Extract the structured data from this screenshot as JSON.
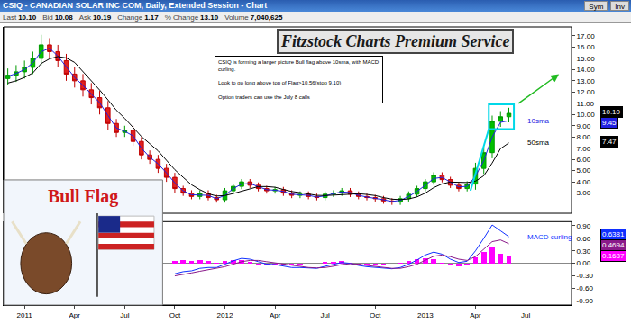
{
  "header": {
    "title": "CSIQ - CANADIAN SOLAR INC COM, Daily, Extended Session - Chart",
    "buttons": [
      "Sym",
      "Inv"
    ],
    "quote": [
      {
        "label": "Last",
        "value": "10.10"
      },
      {
        "label": "Bid",
        "value": "10.08"
      },
      {
        "label": "Ask",
        "value": "10.19"
      },
      {
        "label": "Change",
        "value": "1.17"
      },
      {
        "label": "% Change",
        "value": "13.10"
      },
      {
        "label": "Volume",
        "value": "7,040,625"
      }
    ]
  },
  "banner": "Fitzstock Charts Premium Service",
  "note": [
    [
      "CSIQ is forming a larger picture Bull flag above 10sma, with MACD",
      "curling."
    ],
    [
      "Look to go long above top of Flag>10.56(stop 9.10)"
    ],
    [
      "Option traders can use the July 8 calls"
    ]
  ],
  "image_caption": "Bull Flag",
  "chart_data": [
    {
      "type": "candlestick",
      "tick_labels": "y",
      "grid": false,
      "categories": [
        null,
        null,
        "2011",
        null,
        null,
        null,
        null,
        null,
        "Apr",
        null,
        null,
        null,
        null,
        null,
        "Jul",
        null,
        null,
        null,
        null,
        null,
        "Oct",
        null,
        null,
        null,
        null,
        null,
        "2012",
        null,
        null,
        null,
        null,
        null,
        "Apr",
        null,
        null,
        null,
        null,
        null,
        "Jul",
        null,
        null,
        null,
        null,
        null,
        "Oct",
        null,
        null,
        null,
        null,
        null,
        "2013",
        null,
        null,
        null,
        null,
        null,
        "Apr",
        null,
        null,
        null,
        null,
        null,
        "Jul",
        null,
        null,
        null,
        null,
        null
      ],
      "open": [
        13.2,
        13.5,
        13.8,
        14.2,
        15.0,
        16.2,
        15.6,
        14.8,
        13.6,
        13.0,
        12.2,
        11.5,
        10.6,
        9.2,
        8.4,
        8.6,
        7.6,
        6.4,
        6.0,
        5.2,
        4.4,
        3.4,
        3.0,
        2.7,
        3.0,
        2.6,
        2.4,
        3.2,
        3.6,
        4.0,
        3.7,
        3.4,
        3.2,
        3.3,
        3.0,
        2.8,
        2.9,
        2.7,
        2.6,
        2.9,
        3.0,
        3.2,
        2.9,
        2.7,
        2.6,
        2.5,
        2.3,
        2.2,
        2.5,
        2.9,
        3.4,
        4.0,
        4.6,
        4.2,
        3.7,
        3.4,
        3.8,
        5.2,
        6.6,
        9.4,
        9.8,
        null,
        null,
        null,
        null,
        null,
        null,
        null
      ],
      "high": [
        14.1,
        14.4,
        14.8,
        15.6,
        17.1,
        16.8,
        16.2,
        15.4,
        14.2,
        13.6,
        12.8,
        12.1,
        11.2,
        9.6,
        9.0,
        9.0,
        8.0,
        6.8,
        6.4,
        5.6,
        4.8,
        3.65,
        3.25,
        3.25,
        3.25,
        2.85,
        3.45,
        3.85,
        4.25,
        4.25,
        3.95,
        3.65,
        3.55,
        3.55,
        3.25,
        3.15,
        3.15,
        2.95,
        3.15,
        3.25,
        3.45,
        3.45,
        3.15,
        2.95,
        2.85,
        2.75,
        2.55,
        2.75,
        3.15,
        3.65,
        4.25,
        4.85,
        4.85,
        4.45,
        3.95,
        4.05,
        5.7,
        7.1,
        9.9,
        10.3,
        10.6,
        null,
        null,
        null,
        null,
        null,
        null,
        null
      ],
      "low": [
        12.6,
        12.9,
        13.2,
        13.6,
        14.4,
        15.0,
        14.2,
        13.0,
        12.4,
        11.6,
        10.9,
        10.0,
        8.6,
        8.0,
        8.0,
        7.2,
        6.0,
        5.6,
        4.8,
        4.0,
        3.0,
        2.75,
        2.45,
        2.45,
        2.35,
        2.15,
        2.15,
        2.95,
        3.35,
        3.45,
        3.15,
        2.95,
        2.95,
        2.75,
        2.55,
        2.55,
        2.45,
        2.35,
        2.35,
        2.65,
        2.75,
        2.65,
        2.45,
        2.35,
        2.25,
        2.05,
        1.95,
        1.95,
        2.25,
        2.65,
        3.15,
        3.75,
        3.95,
        3.45,
        3.15,
        3.15,
        3.3,
        4.7,
        6.1,
        8.9,
        9.3,
        null,
        null,
        null,
        null,
        null,
        null,
        null
      ],
      "close": [
        13.5,
        13.8,
        14.2,
        15.0,
        16.2,
        15.6,
        14.8,
        13.6,
        13.0,
        12.2,
        11.5,
        10.6,
        9.2,
        8.4,
        8.6,
        7.6,
        6.4,
        6.0,
        5.2,
        4.4,
        3.4,
        3.0,
        2.7,
        3.0,
        2.6,
        2.4,
        3.2,
        3.6,
        4.0,
        3.7,
        3.4,
        3.2,
        3.3,
        3.0,
        2.8,
        2.9,
        2.7,
        2.6,
        2.9,
        3.0,
        3.2,
        2.9,
        2.7,
        2.6,
        2.5,
        2.3,
        2.2,
        2.5,
        2.9,
        3.4,
        4.0,
        4.6,
        4.2,
        3.7,
        3.4,
        3.8,
        5.2,
        6.6,
        9.4,
        9.8,
        10.1,
        null,
        null,
        null,
        null,
        null,
        null,
        null
      ],
      "last_label": "10.10",
      "ylim": [
        1.2,
        17.8
      ],
      "yticks": [
        {
          "value": 3,
          "label": "3.00"
        },
        {
          "value": 4,
          "label": "4.00"
        },
        {
          "value": 5,
          "label": "5.00"
        },
        {
          "value": 6,
          "label": "6.00"
        },
        {
          "value": 7,
          "label": "7.00"
        },
        {
          "value": 8,
          "label": "8.00"
        },
        {
          "value": 9,
          "label": "9.00"
        },
        {
          "value": 10,
          "label": "10.00"
        },
        {
          "value": 11,
          "label": "11.00"
        },
        {
          "value": 12,
          "label": "12.00"
        },
        {
          "value": 13,
          "label": "13.00"
        },
        {
          "value": 14,
          "label": "14.00"
        },
        {
          "value": 15,
          "label": "15.00"
        },
        {
          "value": 16,
          "label": "16.00"
        },
        {
          "value": 17,
          "label": "17.00"
        }
      ],
      "series": [
        {
          "name": "10sma",
          "color": "#2020e0",
          "last_label": "9.45",
          "values": [
            13.4,
            13.65,
            14.0,
            14.6,
            15.6,
            15.9,
            15.2,
            14.2,
            13.3,
            12.6,
            11.85,
            11.05,
            9.9,
            8.8,
            8.5,
            8.1,
            7.0,
            6.2,
            5.6,
            4.8,
            3.9,
            3.2,
            2.85,
            2.85,
            2.8,
            2.5,
            2.8,
            3.4,
            3.8,
            3.85,
            3.55,
            3.3,
            3.25,
            3.15,
            2.9,
            2.85,
            2.8,
            2.65,
            2.75,
            2.95,
            3.1,
            3.05,
            2.8,
            2.65,
            2.55,
            2.4,
            2.25,
            2.35,
            2.7,
            3.15,
            3.7,
            4.3,
            4.4,
            3.95,
            3.55,
            3.6,
            4.5,
            5.9,
            8.0,
            9.3,
            9.45,
            null,
            null,
            null,
            null,
            null,
            null,
            null
          ]
        },
        {
          "name": "50sma",
          "color": "#000000",
          "last_label": "7.47",
          "values": [
            12.8,
            13.0,
            13.3,
            13.7,
            14.54,
            14.96,
            15.16,
            15.04,
            14.64,
            13.84,
            13.02,
            12.18,
            11.3,
            10.38,
            9.66,
            8.88,
            8.04,
            7.4,
            6.76,
            5.92,
            5.08,
            4.4,
            3.74,
            3.3,
            2.94,
            2.74,
            2.78,
            2.96,
            3.16,
            3.38,
            3.58,
            3.58,
            3.52,
            3.32,
            3.14,
            3.04,
            2.94,
            2.8,
            2.78,
            2.82,
            2.88,
            2.92,
            2.94,
            2.88,
            2.78,
            2.6,
            2.46,
            2.42,
            2.48,
            2.66,
            3.0,
            3.48,
            3.82,
            3.98,
            3.98,
            3.94,
            4.06,
            4.54,
            5.68,
            6.96,
            7.47,
            null,
            null,
            null,
            null,
            null,
            null,
            null
          ]
        }
      ],
      "flag": {
        "x": [
          57.6,
          60.6
        ],
        "y": [
          8.7,
          10.9
        ],
        "color": "#00d8e8"
      },
      "pole": {
        "x": [
          55.4,
          57.6
        ],
        "y": [
          3.2,
          8.7
        ],
        "color": "#00d8e8"
      },
      "arrow": {
        "x": [
          61,
          66
        ],
        "y": [
          10.9,
          13.6
        ],
        "color": "#22bb22"
      }
    },
    {
      "type": "line",
      "grid": false,
      "annotation": "MACD curling",
      "categories": [
        null,
        null,
        "2011",
        null,
        null,
        null,
        null,
        null,
        "Apr",
        null,
        null,
        null,
        null,
        null,
        "Jul",
        null,
        null,
        null,
        null,
        null,
        "Oct",
        null,
        null,
        null,
        null,
        null,
        "2012",
        null,
        null,
        null,
        null,
        null,
        "Apr",
        null,
        null,
        null,
        null,
        null,
        "Jul",
        null,
        null,
        null,
        null,
        null,
        "Oct",
        null,
        null,
        null,
        null,
        null,
        "2013",
        null,
        null,
        null,
        null,
        null,
        "Apr",
        null,
        null,
        null,
        null,
        null,
        "Jul",
        null,
        null,
        null,
        null,
        null
      ],
      "ylim": [
        -1.0,
        1.0
      ],
      "yticks": [
        {
          "value": 0.9,
          "label": "0.90"
        },
        {
          "value": 0.6,
          "label": "0.60"
        },
        {
          "value": 0.3,
          "label": "0.30"
        },
        {
          "value": 0,
          "label": "0.00"
        },
        {
          "value": -0.3,
          "label": "-0.30"
        },
        {
          "value": -0.6,
          "label": "-0.60"
        },
        {
          "value": -0.9,
          "label": "-0.90"
        }
      ],
      "series": [
        {
          "color": "#1030ff",
          "last_label": "0.6381",
          "values": [
            null,
            null,
            null,
            null,
            null,
            null,
            null,
            null,
            null,
            null,
            null,
            null,
            null,
            null,
            null,
            null,
            null,
            null,
            null,
            null,
            -0.25,
            -0.2,
            -0.18,
            -0.12,
            -0.1,
            -0.1,
            -0.02,
            0.06,
            0.12,
            0.1,
            0.04,
            -0.02,
            -0.03,
            -0.06,
            -0.1,
            -0.1,
            -0.11,
            -0.12,
            -0.07,
            -0.03,
            0.02,
            0.0,
            -0.05,
            -0.08,
            -0.1,
            -0.12,
            -0.13,
            -0.1,
            -0.02,
            0.08,
            0.2,
            0.27,
            0.22,
            0.1,
            0.02,
            0.05,
            0.3,
            0.6,
            0.92,
            0.78,
            0.6381,
            null,
            null,
            null,
            null,
            null,
            null,
            null
          ]
        },
        {
          "color": "#8a1a8a",
          "last_label": "0.4694",
          "values": [
            null,
            null,
            null,
            null,
            null,
            null,
            null,
            null,
            null,
            null,
            null,
            null,
            null,
            null,
            null,
            null,
            null,
            null,
            null,
            null,
            -0.3,
            -0.27,
            -0.23,
            -0.19,
            -0.15,
            -0.12,
            -0.08,
            -0.02,
            0.04,
            0.07,
            0.07,
            0.04,
            0.01,
            -0.02,
            -0.05,
            -0.08,
            -0.1,
            -0.11,
            -0.1,
            -0.07,
            -0.03,
            -0.01,
            -0.02,
            -0.05,
            -0.07,
            -0.1,
            -0.12,
            -0.12,
            -0.08,
            -0.02,
            0.08,
            0.17,
            0.2,
            0.16,
            0.1,
            0.07,
            0.16,
            0.33,
            0.52,
            0.56,
            0.4694,
            null,
            null,
            null,
            null,
            null,
            null,
            null
          ]
        },
        {
          "type": "bar",
          "color": "#ff00ff",
          "last_label": "0.1687",
          "values": [
            null,
            null,
            null,
            null,
            null,
            null,
            null,
            null,
            null,
            null,
            null,
            null,
            null,
            null,
            null,
            null,
            null,
            null,
            null,
            null,
            0.05,
            0.07,
            0.05,
            0.07,
            0.05,
            0.02,
            0.06,
            0.08,
            0.08,
            0.03,
            -0.03,
            -0.06,
            -0.04,
            -0.04,
            -0.05,
            -0.02,
            -0.01,
            -0.01,
            0.03,
            0.04,
            0.05,
            0.01,
            -0.03,
            -0.03,
            -0.03,
            -0.02,
            -0.01,
            0.02,
            0.06,
            0.1,
            0.12,
            0.1,
            0.02,
            -0.06,
            -0.08,
            -0.02,
            0.14,
            0.27,
            0.4,
            0.22,
            0.1687,
            null,
            null,
            null,
            null,
            null,
            null,
            null
          ]
        }
      ]
    }
  ]
}
